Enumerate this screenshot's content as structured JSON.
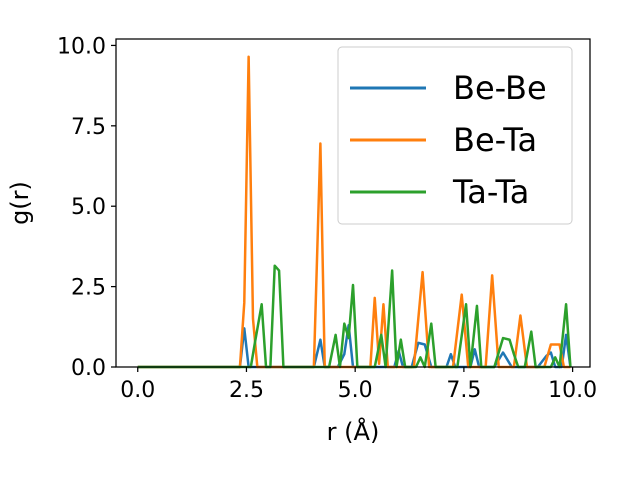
{
  "chart_data": {
    "type": "line",
    "title": "",
    "xlabel": "r (Å)",
    "ylabel": "g(r)",
    "xlim": [
      -0.5,
      10.4
    ],
    "ylim": [
      0,
      10.2
    ],
    "xticks": [
      0.0,
      2.5,
      5.0,
      7.5,
      10.0
    ],
    "xtick_labels": [
      "0.0",
      "2.5",
      "5.0",
      "7.5",
      "10.0"
    ],
    "yticks": [
      0.0,
      2.5,
      5.0,
      7.5,
      10.0
    ],
    "ytick_labels": [
      "0.0",
      "2.5",
      "5.0",
      "7.5",
      "10.0"
    ],
    "grid": false,
    "legend_position": "top-right",
    "series": [
      {
        "name": "Be-Be",
        "color": "#1f77b4",
        "points": [
          [
            0.0,
            0
          ],
          [
            2.2,
            0
          ],
          [
            2.35,
            0
          ],
          [
            2.45,
            1.2
          ],
          [
            2.55,
            0
          ],
          [
            4.05,
            0
          ],
          [
            4.2,
            0.85
          ],
          [
            4.3,
            0
          ],
          [
            4.6,
            0
          ],
          [
            4.75,
            0.4
          ],
          [
            4.85,
            1.3
          ],
          [
            4.95,
            0
          ],
          [
            5.9,
            0
          ],
          [
            6.0,
            0.5
          ],
          [
            6.1,
            0
          ],
          [
            6.3,
            0
          ],
          [
            6.45,
            0.75
          ],
          [
            6.6,
            0.7
          ],
          [
            6.75,
            0
          ],
          [
            7.1,
            0
          ],
          [
            7.2,
            0.4
          ],
          [
            7.3,
            0
          ],
          [
            7.65,
            0
          ],
          [
            7.75,
            0.55
          ],
          [
            7.85,
            0
          ],
          [
            8.2,
            0
          ],
          [
            8.4,
            0.45
          ],
          [
            8.6,
            0
          ],
          [
            9.2,
            0
          ],
          [
            9.4,
            0.35
          ],
          [
            9.5,
            0.45
          ],
          [
            9.6,
            0
          ],
          [
            9.75,
            0
          ],
          [
            9.85,
            1.0
          ],
          [
            9.95,
            0
          ]
        ]
      },
      {
        "name": "Be-Ta",
        "color": "#ff7f0e",
        "points": [
          [
            0.0,
            0
          ],
          [
            2.35,
            0
          ],
          [
            2.45,
            2.0
          ],
          [
            2.55,
            9.65
          ],
          [
            2.65,
            1.5
          ],
          [
            2.75,
            0
          ],
          [
            4.05,
            0
          ],
          [
            4.2,
            6.95
          ],
          [
            4.3,
            0
          ],
          [
            5.35,
            0
          ],
          [
            5.45,
            2.15
          ],
          [
            5.55,
            0.1
          ],
          [
            5.65,
            1.95
          ],
          [
            5.75,
            0
          ],
          [
            6.35,
            0
          ],
          [
            6.55,
            2.95
          ],
          [
            6.7,
            0
          ],
          [
            7.25,
            0
          ],
          [
            7.45,
            2.25
          ],
          [
            7.6,
            0
          ],
          [
            8.0,
            0
          ],
          [
            8.15,
            2.85
          ],
          [
            8.3,
            0
          ],
          [
            8.65,
            0
          ],
          [
            8.8,
            1.6
          ],
          [
            8.95,
            0
          ],
          [
            9.35,
            0
          ],
          [
            9.5,
            0.7
          ],
          [
            9.7,
            0.7
          ],
          [
            9.8,
            0
          ],
          [
            9.95,
            0
          ]
        ]
      },
      {
        "name": "Ta-Ta",
        "color": "#2ca02c",
        "points": [
          [
            0.0,
            0
          ],
          [
            2.6,
            0
          ],
          [
            2.7,
            0.8
          ],
          [
            2.85,
            1.95
          ],
          [
            2.95,
            0
          ],
          [
            3.05,
            0
          ],
          [
            3.15,
            3.15
          ],
          [
            3.25,
            3.0
          ],
          [
            3.35,
            0
          ],
          [
            4.4,
            0
          ],
          [
            4.55,
            1.0
          ],
          [
            4.65,
            0
          ],
          [
            4.75,
            1.35
          ],
          [
            4.85,
            0.9
          ],
          [
            4.95,
            2.55
          ],
          [
            5.05,
            0
          ],
          [
            5.45,
            0
          ],
          [
            5.6,
            1.0
          ],
          [
            5.7,
            0
          ],
          [
            5.85,
            3.0
          ],
          [
            5.95,
            0
          ],
          [
            6.05,
            0.85
          ],
          [
            6.15,
            0
          ],
          [
            6.4,
            0
          ],
          [
            6.5,
            0.3
          ],
          [
            6.6,
            0
          ],
          [
            6.75,
            1.35
          ],
          [
            6.85,
            0
          ],
          [
            7.35,
            0
          ],
          [
            7.55,
            1.95
          ],
          [
            7.65,
            0
          ],
          [
            7.8,
            1.9
          ],
          [
            7.9,
            0
          ],
          [
            8.2,
            0
          ],
          [
            8.4,
            0.9
          ],
          [
            8.55,
            0.85
          ],
          [
            8.65,
            0.4
          ],
          [
            8.75,
            0
          ],
          [
            8.9,
            0
          ],
          [
            9.05,
            1.1
          ],
          [
            9.15,
            0
          ],
          [
            9.5,
            0
          ],
          [
            9.6,
            0.3
          ],
          [
            9.7,
            0
          ],
          [
            9.85,
            1.95
          ],
          [
            9.95,
            0
          ]
        ]
      }
    ]
  }
}
